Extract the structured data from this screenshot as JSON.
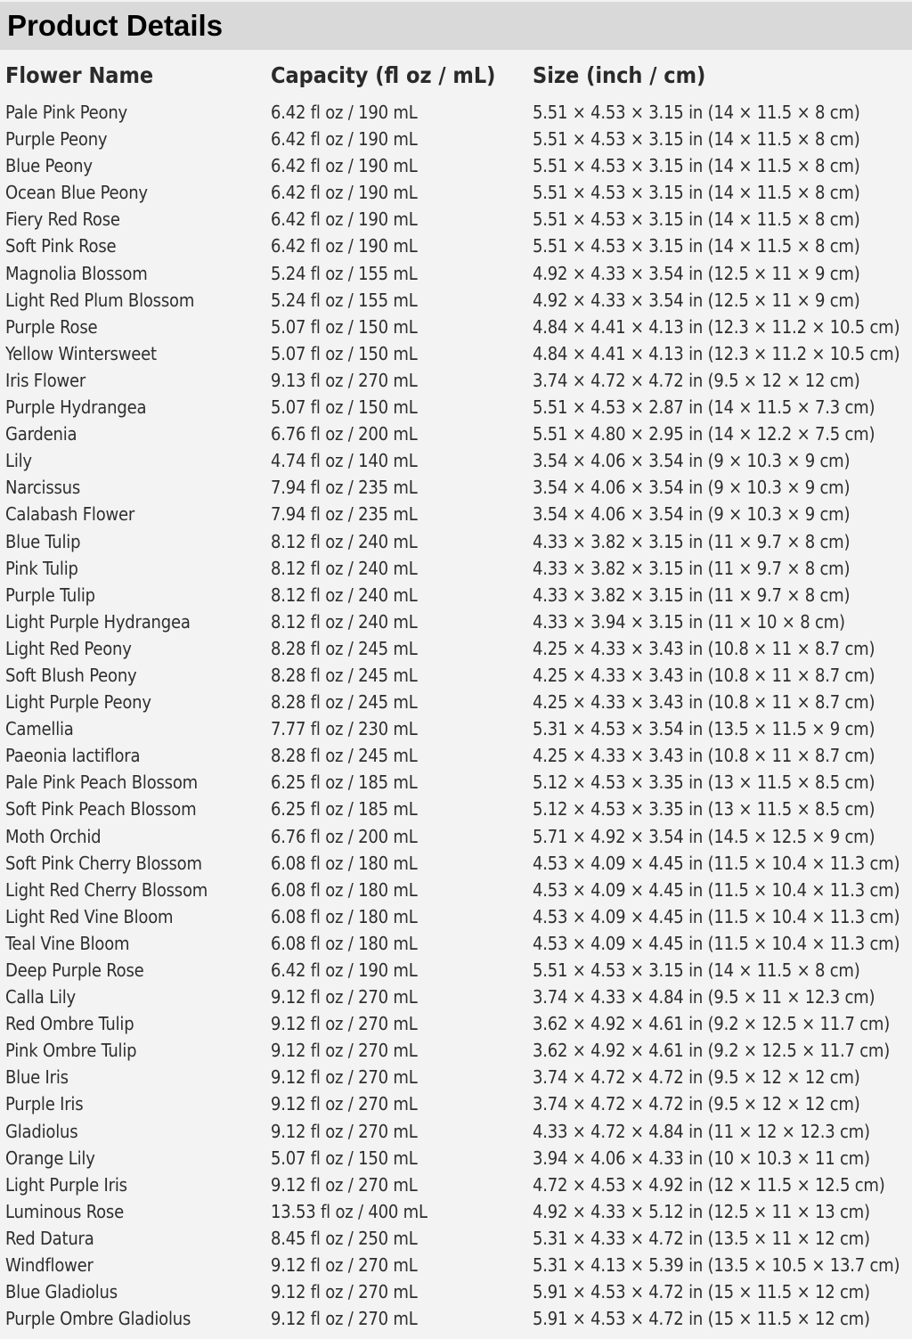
{
  "title": "Product Details",
  "columns": [
    "Flower Name",
    "Capacity (fl oz / mL)",
    "Size (inch / cm)"
  ],
  "rows": [
    [
      "Pale Pink Peony",
      "6.42 fl oz / 190 mL",
      "5.51 × 4.53 × 3.15 in (14 × 11.5 × 8 cm)"
    ],
    [
      "Purple Peony",
      "6.42 fl oz / 190 mL",
      "5.51 × 4.53 × 3.15 in (14 × 11.5 × 8 cm)"
    ],
    [
      "Blue Peony",
      "6.42 fl oz / 190 mL",
      "5.51 × 4.53 × 3.15 in (14 × 11.5 × 8 cm)"
    ],
    [
      "Ocean Blue Peony",
      "6.42 fl oz / 190 mL",
      "5.51 × 4.53 × 3.15 in (14 × 11.5 × 8 cm)"
    ],
    [
      "Fiery Red Rose",
      "6.42 fl oz / 190 mL",
      "5.51 × 4.53 × 3.15 in (14 × 11.5 × 8 cm)"
    ],
    [
      "Soft Pink Rose",
      "6.42 fl oz / 190 mL",
      "5.51 × 4.53 × 3.15 in (14 × 11.5 × 8 cm)"
    ],
    [
      "Magnolia Blossom",
      "5.24 fl oz / 155 mL",
      "4.92 × 4.33 × 3.54 in (12.5 × 11 × 9 cm)"
    ],
    [
      "Light Red Plum Blossom",
      "5.24 fl oz / 155 mL",
      "4.92 × 4.33 × 3.54 in (12.5 × 11 × 9 cm)"
    ],
    [
      "Purple Rose",
      "5.07 fl oz / 150 mL",
      "4.84 × 4.41 × 4.13 in (12.3 × 11.2 × 10.5 cm)"
    ],
    [
      "Yellow Wintersweet",
      "5.07 fl oz / 150 mL",
      "4.84 × 4.41 × 4.13 in (12.3 × 11.2 × 10.5 cm)"
    ],
    [
      "Iris Flower",
      "9.13 fl oz / 270 mL",
      "3.74 × 4.72 × 4.72 in (9.5 × 12 × 12 cm)"
    ],
    [
      "Purple Hydrangea",
      "5.07 fl oz / 150 mL",
      "5.51 × 4.53 × 2.87 in (14 × 11.5 × 7.3 cm)"
    ],
    [
      "Gardenia",
      "6.76 fl oz / 200 mL",
      "5.51 × 4.80 × 2.95 in (14 × 12.2 × 7.5 cm)"
    ],
    [
      "Lily",
      "4.74 fl oz / 140 mL",
      "3.54 × 4.06 × 3.54 in (9 × 10.3 × 9 cm)"
    ],
    [
      "Narcissus",
      "7.94 fl oz / 235 mL",
      "3.54 × 4.06 × 3.54 in (9 × 10.3 × 9 cm)"
    ],
    [
      "Calabash Flower",
      "7.94 fl oz / 235 mL",
      "3.54 × 4.06 × 3.54 in (9 × 10.3 × 9 cm)"
    ],
    [
      "Blue Tulip",
      "8.12 fl oz / 240 mL",
      "4.33 × 3.82 × 3.15 in (11 × 9.7 × 8 cm)"
    ],
    [
      "Pink Tulip",
      "8.12 fl oz / 240 mL",
      "4.33 × 3.82 × 3.15 in (11 × 9.7 × 8 cm)"
    ],
    [
      "Purple Tulip",
      "8.12 fl oz / 240 mL",
      "4.33 × 3.82 × 3.15 in (11 × 9.7 × 8 cm)"
    ],
    [
      "Light Purple Hydrangea",
      "8.12 fl oz / 240 mL",
      "4.33 × 3.94 × 3.15 in (11 × 10 × 8 cm)"
    ],
    [
      "Light Red Peony",
      "8.28 fl oz / 245 mL",
      "4.25 × 4.33 × 3.43 in (10.8 × 11 × 8.7 cm)"
    ],
    [
      "Soft Blush Peony",
      "8.28 fl oz / 245 mL",
      "4.25 × 4.33 × 3.43 in (10.8 × 11 × 8.7 cm)"
    ],
    [
      "Light Purple Peony",
      "8.28 fl oz / 245 mL",
      "4.25 × 4.33 × 3.43 in (10.8 × 11 × 8.7 cm)"
    ],
    [
      "Camellia",
      "7.77 fl oz / 230 mL",
      "5.31 × 4.53 × 3.54 in (13.5 × 11.5 × 9 cm)"
    ],
    [
      "Paeonia lactiflora",
      "8.28 fl oz / 245 mL",
      "4.25 × 4.33 × 3.43 in (10.8 × 11 × 8.7 cm)"
    ],
    [
      "Pale Pink Peach Blossom",
      "6.25 fl oz / 185 mL",
      "5.12 × 4.53 × 3.35 in (13 × 11.5 × 8.5 cm)"
    ],
    [
      "Soft Pink Peach Blossom",
      "6.25 fl oz / 185 mL",
      "5.12 × 4.53 × 3.35 in (13 × 11.5 × 8.5 cm)"
    ],
    [
      "Moth Orchid",
      "6.76 fl oz / 200 mL",
      "5.71 × 4.92 × 3.54 in (14.5 × 12.5 × 9 cm)"
    ],
    [
      "Soft Pink Cherry Blossom",
      "6.08 fl oz / 180 mL",
      "4.53 × 4.09 × 4.45 in (11.5 × 10.4 × 11.3 cm)"
    ],
    [
      "Light Red Cherry Blossom",
      "6.08 fl oz / 180 mL",
      "4.53 × 4.09 × 4.45 in (11.5 × 10.4 × 11.3 cm)"
    ],
    [
      "Light Red Vine Bloom",
      "6.08 fl oz / 180 mL",
      "4.53 × 4.09 × 4.45 in (11.5 × 10.4 × 11.3 cm)"
    ],
    [
      "Teal Vine Bloom",
      "6.08 fl oz / 180 mL",
      "4.53 × 4.09 × 4.45 in (11.5 × 10.4 × 11.3 cm)"
    ],
    [
      "Deep Purple Rose",
      "6.42 fl oz / 190 mL",
      "5.51 × 4.53 × 3.15 in (14 × 11.5 × 8 cm)"
    ],
    [
      "Calla Lily",
      "9.12 fl oz / 270 mL",
      "3.74 × 4.33 × 4.84 in (9.5 × 11 × 12.3 cm)"
    ],
    [
      "Red Ombre Tulip",
      "9.12 fl oz / 270 mL",
      "3.62 × 4.92 × 4.61 in (9.2 × 12.5 × 11.7 cm)"
    ],
    [
      "Pink Ombre Tulip",
      "9.12 fl oz / 270 mL",
      "3.62 × 4.92 × 4.61 in (9.2 × 12.5 × 11.7 cm)"
    ],
    [
      "Blue Iris",
      "9.12 fl oz / 270 mL",
      "3.74 × 4.72 × 4.72 in (9.5 × 12 × 12 cm)"
    ],
    [
      "Purple Iris",
      "9.12 fl oz / 270 mL",
      "3.74 × 4.72 × 4.72 in (9.5 × 12 × 12 cm)"
    ],
    [
      "Gladiolus",
      "9.12 fl oz / 270 mL",
      "4.33 × 4.72 × 4.84 in (11 × 12 × 12.3 cm)"
    ],
    [
      "Orange Lily",
      "5.07 fl oz / 150 mL",
      "3.94 × 4.06 × 4.33 in (10 × 10.3 × 11 cm)"
    ],
    [
      "Light Purple Iris",
      "9.12 fl oz / 270 mL",
      "4.72 × 4.53 × 4.92 in (12 × 11.5 × 12.5 cm)"
    ],
    [
      "Luminous Rose",
      "13.53 fl oz / 400 mL",
      "4.92 × 4.33 × 5.12 in (12.5 × 11 × 13 cm)"
    ],
    [
      "Red Datura",
      "8.45 fl oz / 250 mL",
      "5.31 × 4.33 × 4.72 in (13.5 × 11 × 12 cm)"
    ],
    [
      "Windflower",
      "9.12 fl oz / 270 mL",
      "5.31 × 4.13 × 5.39 in (13.5 × 10.5 × 13.7 cm)"
    ],
    [
      "Blue Gladiolus",
      "9.12 fl oz / 270 mL",
      "5.91 × 4.53 × 4.72 in (15 × 11.5 × 12 cm)"
    ],
    [
      "Purple Ombre Gladiolus",
      "9.12 fl oz / 270 mL",
      "5.91 × 4.53 × 4.72 in (15 × 11.5 × 12 cm)"
    ]
  ],
  "colors": {
    "title_bar": "#d9d9d9",
    "background": "#f3f3f3",
    "text": "#2e2e2e"
  }
}
